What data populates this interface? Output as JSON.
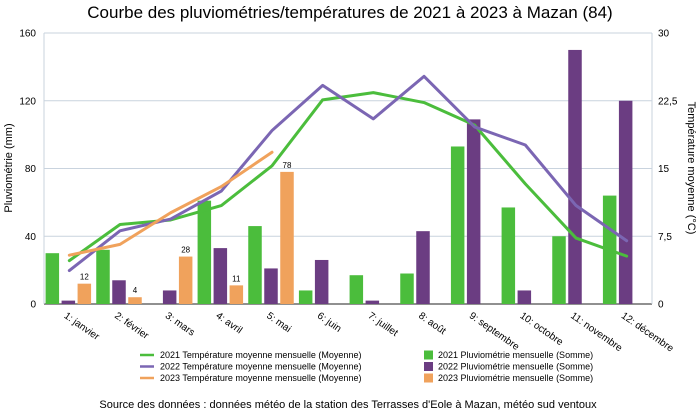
{
  "chart_data": {
    "type": "bar",
    "title": "Courbe des pluviométries/températures de 2021 à 2023 à Mazan (84)",
    "ylabel": "Pluviométrie (mm)",
    "y2label": "Température moyenne (°C)",
    "ylim": [
      0,
      160
    ],
    "y2lim": [
      0,
      30
    ],
    "yticks": [
      "0",
      "40",
      "80",
      "120",
      "160"
    ],
    "y2ticks": [
      "0",
      "7,5",
      "15",
      "22,5",
      "30"
    ],
    "grid": true,
    "legend_position": "bottom",
    "categories": [
      "1: janvier",
      "2: février",
      "3: mars",
      "4: avril",
      "5: mai",
      "6: juin",
      "7: juillet",
      "8: août",
      "9: septembre",
      "10: octobre",
      "11: novembre",
      "12: décembre"
    ],
    "bar_series": [
      {
        "name": "2021 Pluviométrie mensuelle (Somme)",
        "color": "#4bbd3c",
        "values": [
          30,
          32,
          0,
          61,
          46,
          8,
          17,
          18,
          93,
          57,
          40,
          64
        ],
        "labels": null
      },
      {
        "name": "2022 Pluviométrie mensuelle (Somme)",
        "color": "#6b3d82",
        "values": [
          2,
          14,
          8,
          33,
          21,
          26,
          2,
          43,
          109,
          8,
          150,
          120
        ],
        "labels": null
      },
      {
        "name": "2023 Pluviométrie mensuelle (Somme)",
        "color": "#f0a25c",
        "values": [
          12,
          4,
          28,
          11,
          78,
          null,
          null,
          null,
          null,
          null,
          null,
          null
        ],
        "labels": [
          "12",
          "4",
          "28",
          "11",
          "78",
          "",
          "",
          "",
          "",
          "",
          "",
          ""
        ]
      }
    ],
    "line_series": [
      {
        "name": "2021 Température moyenne mensuelle (Moyenne)",
        "color": "#4bbd3c",
        "values": [
          4.8,
          8.8,
          9.3,
          10.9,
          15.3,
          22.6,
          23.4,
          22.3,
          19.8,
          13.3,
          7.3,
          5.3
        ]
      },
      {
        "name": "2022 Température moyenne mensuelle (Moyenne)",
        "color": "#7b66b3",
        "values": [
          3.7,
          8.1,
          9.4,
          12.5,
          19.2,
          24.2,
          20.5,
          25.2,
          19.6,
          17.6,
          10.9,
          7.0
        ]
      },
      {
        "name": "2023 Température moyenne mensuelle (Moyenne)",
        "color": "#f0a25c",
        "values": [
          5.4,
          6.6,
          10.1,
          13.0,
          16.8,
          null,
          null,
          null,
          null,
          null,
          null,
          null
        ]
      }
    ],
    "source": "Source des données : données météo de la station des Terrasses d'Eole à Mazan, météo sud ventoux"
  }
}
